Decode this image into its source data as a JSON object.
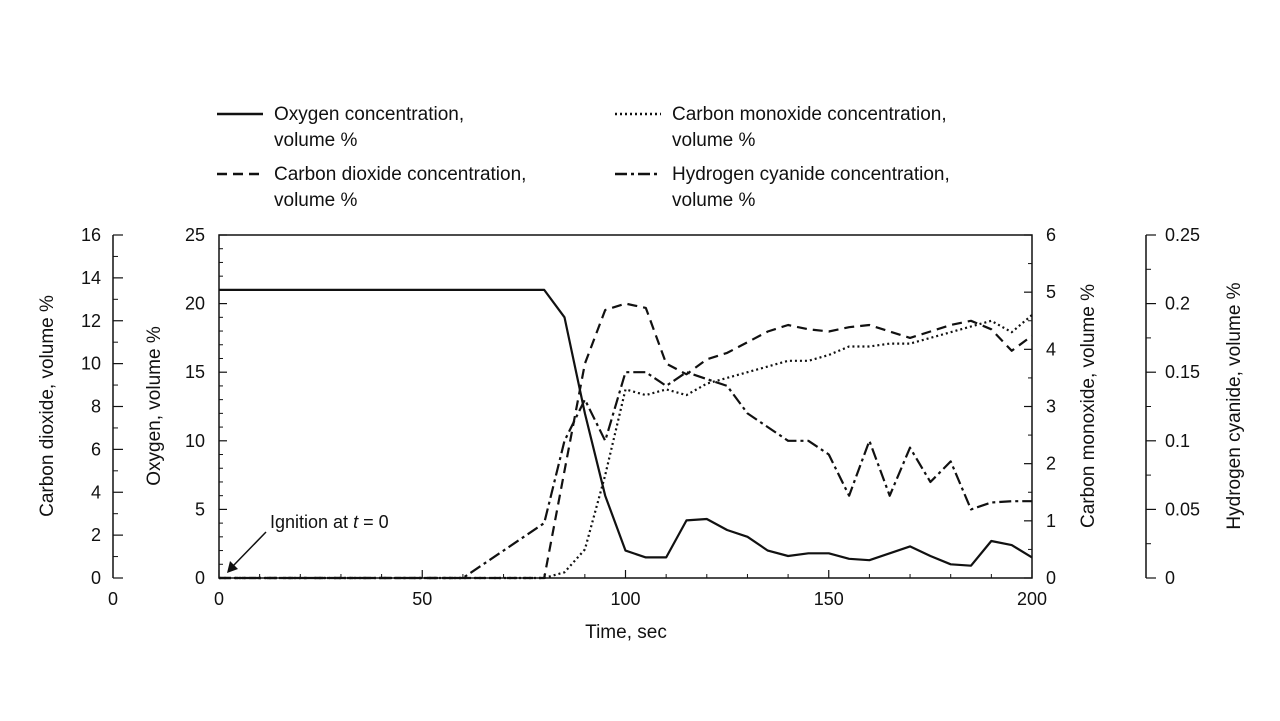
{
  "chart_data": {
    "type": "line",
    "x": [
      0,
      5,
      10,
      15,
      20,
      25,
      30,
      35,
      40,
      45,
      50,
      55,
      60,
      65,
      70,
      75,
      80,
      85,
      90,
      95,
      100,
      105,
      110,
      115,
      120,
      125,
      130,
      135,
      140,
      145,
      150,
      155,
      160,
      165,
      170,
      175,
      180,
      185,
      190,
      195,
      200
    ],
    "xlabel": "Time, sec",
    "xlim": [
      0,
      200
    ],
    "xticks": [
      "0",
      "50",
      "100",
      "150",
      "200"
    ],
    "legend": {
      "placement": "top",
      "entries": [
        {
          "label_line1": "Oxygen concentration,",
          "label_line2": "volume %",
          "style": "solid"
        },
        {
          "label_line1": "Carbon monoxide concentration,",
          "label_line2": "volume %",
          "style": "dotted"
        },
        {
          "label_line1": "Carbon dioxide concentration,",
          "label_line2": "volume %",
          "style": "dashed"
        },
        {
          "label_line1": "Hydrogen cyanide concentration,",
          "label_line2": "volume %",
          "style": "dashdot"
        }
      ]
    },
    "axes": {
      "oxygen": {
        "label": "Oxygen, volume %",
        "lim": [
          0,
          25
        ],
        "ticks": [
          "0",
          "5",
          "10",
          "15",
          "20",
          "25"
        ]
      },
      "carbon_dioxide": {
        "label": "Carbon dioxide, volume %",
        "lim": [
          0,
          16
        ],
        "ticks": [
          "0",
          "2",
          "4",
          "6",
          "8",
          "10",
          "12",
          "14",
          "16"
        ],
        "origin_label": "0"
      },
      "carbon_monoxide": {
        "label": "Carbon monoxide, volume %",
        "lim": [
          0,
          6
        ],
        "ticks": [
          "0",
          "1",
          "2",
          "3",
          "4",
          "5",
          "6"
        ]
      },
      "hydrogen_cyanide": {
        "label": "Hydrogen cyanide, volume %",
        "lim": [
          0,
          0.25
        ],
        "ticks": [
          "0",
          "0.05",
          "0.1",
          "0.15",
          "0.2",
          "0.25"
        ]
      }
    },
    "series": [
      {
        "axis": "oxygen",
        "style": "solid",
        "values": [
          21,
          21,
          21,
          21,
          21,
          21,
          21,
          21,
          21,
          21,
          21,
          21,
          21,
          21,
          21,
          21,
          21,
          19,
          12,
          6,
          2,
          1.5,
          1.5,
          4.2,
          4.3,
          3.5,
          3.0,
          2.0,
          1.6,
          1.8,
          1.8,
          1.4,
          1.3,
          1.8,
          2.3,
          1.6,
          1.0,
          0.9,
          2.7,
          2.4,
          1.5
        ]
      },
      {
        "axis": "carbon_dioxide",
        "style": "dashed",
        "values": [
          0,
          0,
          0,
          0,
          0,
          0,
          0,
          0,
          0,
          0,
          0,
          0,
          0,
          0,
          0,
          0,
          0,
          5,
          10,
          12.5,
          12.8,
          12.6,
          10.0,
          9.5,
          10.2,
          10.5,
          11.0,
          11.5,
          11.8,
          11.6,
          11.5,
          11.7,
          11.8,
          11.5,
          11.2,
          11.5,
          11.8,
          12.0,
          11.6,
          10.6,
          11.3
        ]
      },
      {
        "axis": "carbon_monoxide",
        "style": "dotted",
        "values": [
          0,
          0,
          0,
          0,
          0,
          0,
          0,
          0,
          0,
          0,
          0,
          0,
          0,
          0,
          0,
          0,
          0,
          0.1,
          0.5,
          1.8,
          3.3,
          3.2,
          3.3,
          3.2,
          3.4,
          3.5,
          3.6,
          3.7,
          3.8,
          3.8,
          3.9,
          4.05,
          4.05,
          4.1,
          4.1,
          4.2,
          4.3,
          4.4,
          4.5,
          4.3,
          4.6
        ]
      },
      {
        "axis": "hydrogen_cyanide",
        "style": "dashdot",
        "values": [
          0,
          0,
          0,
          0,
          0,
          0,
          0,
          0,
          0,
          0,
          0,
          0,
          0,
          0.01,
          0.02,
          0.03,
          0.04,
          0.1,
          0.13,
          0.1,
          0.15,
          0.15,
          0.14,
          0.15,
          0.145,
          0.14,
          0.12,
          0.11,
          0.1,
          0.1,
          0.09,
          0.06,
          0.1,
          0.06,
          0.095,
          0.07,
          0.085,
          0.05,
          0.055,
          0.056,
          0.056
        ]
      }
    ],
    "annotations": [
      {
        "text_pre": "Ignition at ",
        "text_italic": "t",
        "text_post": " = 0",
        "x": 0
      }
    ]
  }
}
